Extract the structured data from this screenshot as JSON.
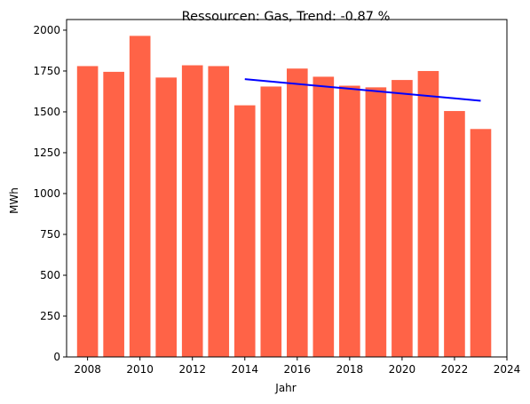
{
  "chart_data": {
    "type": "bar",
    "title": "Ressourcen: Gas, Trend:  -0.87 %",
    "xlabel": "Jahr",
    "ylabel": "MWh",
    "x": [
      2008,
      2009,
      2010,
      2011,
      2012,
      2013,
      2014,
      2015,
      2016,
      2017,
      2018,
      2019,
      2020,
      2021,
      2022,
      2023
    ],
    "values": [
      1780,
      1745,
      1965,
      1710,
      1785,
      1780,
      1540,
      1655,
      1765,
      1715,
      1660,
      1650,
      1695,
      1750,
      1505,
      1395
    ],
    "bar_color": "#ff6347",
    "trend": {
      "x": [
        2014,
        2023
      ],
      "y": [
        1700,
        1568
      ],
      "color": "#0000ff"
    },
    "xlim": [
      2007.2,
      2024
    ],
    "ylim": [
      0,
      2065
    ],
    "xticks": [
      2008,
      2010,
      2012,
      2014,
      2016,
      2018,
      2020,
      2022,
      2024
    ],
    "yticks": [
      0,
      250,
      500,
      750,
      1000,
      1250,
      1500,
      1750,
      2000
    ],
    "grid": false,
    "legend": "none"
  }
}
